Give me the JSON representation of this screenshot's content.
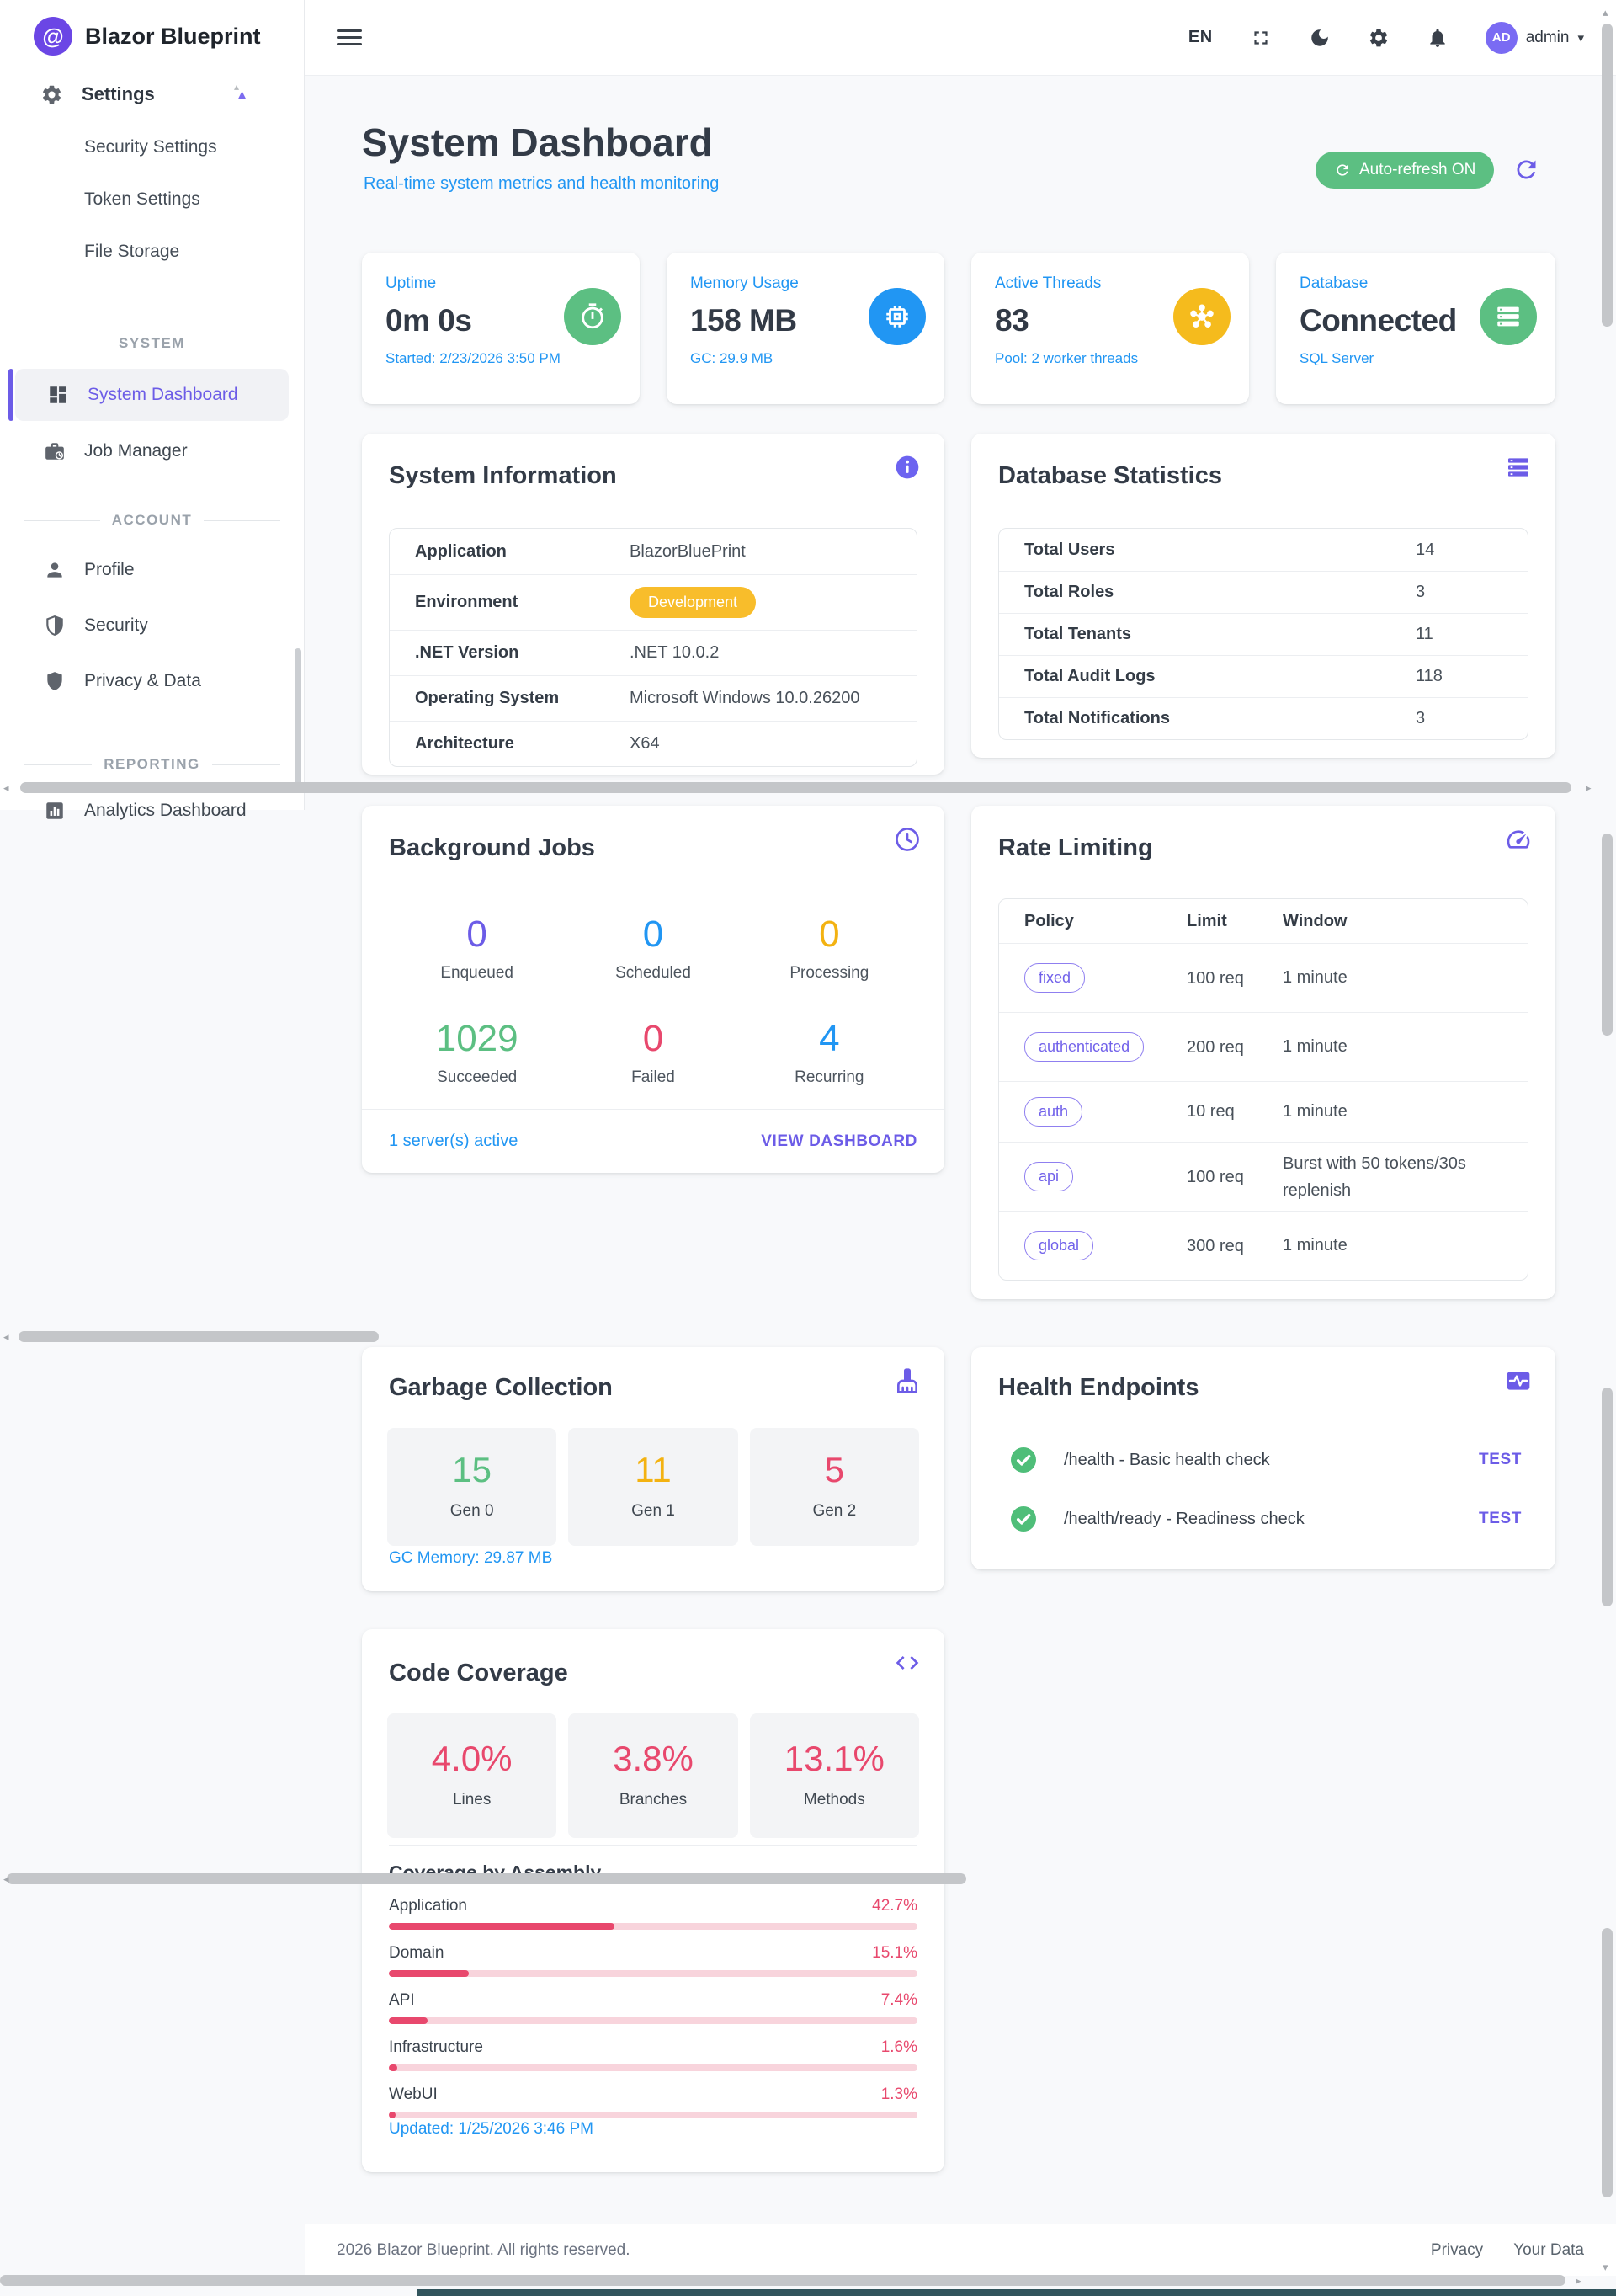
{
  "brand": {
    "name": "Blazor Blueprint"
  },
  "header": {
    "language": "EN",
    "user_initials": "AD",
    "user_name": "admin"
  },
  "sidebar": {
    "settings": {
      "label": "Settings",
      "children": [
        {
          "label": "Security Settings"
        },
        {
          "label": "Token Settings"
        },
        {
          "label": "File Storage"
        }
      ]
    },
    "system_section": {
      "label": "SYSTEM",
      "items": [
        {
          "label": "System Dashboard"
        },
        {
          "label": "Job Manager"
        }
      ]
    },
    "account_section": {
      "label": "ACCOUNT",
      "items": [
        {
          "label": "Profile"
        },
        {
          "label": "Security"
        },
        {
          "label": "Privacy & Data"
        }
      ]
    },
    "reporting_section": {
      "label": "REPORTING",
      "items": [
        {
          "label": "Analytics Dashboard"
        }
      ]
    }
  },
  "page": {
    "title": "System Dashboard",
    "subtitle": "Real-time system metrics and health monitoring",
    "auto_refresh_label": "Auto-refresh ON"
  },
  "metrics": [
    {
      "label": "Uptime",
      "value": "0m 0s",
      "sub": "Started: 2/23/2026 3:50 PM"
    },
    {
      "label": "Memory Usage",
      "value": "158 MB",
      "sub": "GC: 29.9 MB"
    },
    {
      "label": "Active Threads",
      "value": "83",
      "sub": "Pool: 2 worker threads"
    },
    {
      "label": "Database",
      "value": "Connected",
      "sub": "SQL Server"
    }
  ],
  "system_info": {
    "title": "System Information",
    "rows": [
      {
        "label": "Application",
        "value": "BlazorBluePrint"
      },
      {
        "label": "Environment",
        "value": "Development"
      },
      {
        "label": ".NET Version",
        "value": ".NET 10.0.2"
      },
      {
        "label": "Operating System",
        "value": "Microsoft Windows 10.0.26200"
      },
      {
        "label": "Architecture",
        "value": "X64"
      }
    ]
  },
  "db_stats": {
    "title": "Database Statistics",
    "rows": [
      {
        "label": "Total Users",
        "value": "14"
      },
      {
        "label": "Total Roles",
        "value": "3"
      },
      {
        "label": "Total Tenants",
        "value": "11"
      },
      {
        "label": "Total Audit Logs",
        "value": "118"
      },
      {
        "label": "Total Notifications",
        "value": "3"
      }
    ]
  },
  "jobs": {
    "title": "Background Jobs",
    "stats": [
      {
        "value": "0",
        "label": "Enqueued"
      },
      {
        "value": "0",
        "label": "Scheduled"
      },
      {
        "value": "0",
        "label": "Processing"
      },
      {
        "value": "1029",
        "label": "Succeeded"
      },
      {
        "value": "0",
        "label": "Failed"
      },
      {
        "value": "4",
        "label": "Recurring"
      }
    ],
    "servers": "1 server(s) active",
    "view_dashboard": "VIEW DASHBOARD"
  },
  "rate_limiting": {
    "title": "Rate Limiting",
    "headers": {
      "policy": "Policy",
      "limit": "Limit",
      "window": "Window"
    },
    "rows": [
      {
        "policy": "fixed",
        "limit": "100 req",
        "window": "1 minute"
      },
      {
        "policy": "authenticated",
        "limit": "200 req",
        "window": "1 minute"
      },
      {
        "policy": "auth",
        "limit": "10 req",
        "window": "1 minute"
      },
      {
        "policy": "api",
        "limit": "100 req",
        "window": "Burst with 50 tokens/30s replenish"
      },
      {
        "policy": "global",
        "limit": "300 req",
        "window": "1 minute"
      }
    ]
  },
  "gc": {
    "title": "Garbage Collection",
    "stats": [
      {
        "value": "15",
        "label": "Gen 0"
      },
      {
        "value": "11",
        "label": "Gen 1"
      },
      {
        "value": "5",
        "label": "Gen 2"
      }
    ],
    "memory": "GC Memory: 29.87 MB"
  },
  "health": {
    "title": "Health Endpoints",
    "test_label": "TEST",
    "rows": [
      {
        "text": "/health - Basic health check"
      },
      {
        "text": "/health/ready - Readiness check"
      }
    ]
  },
  "coverage": {
    "title": "Code Coverage",
    "stats": [
      {
        "value": "4.0%",
        "label": "Lines"
      },
      {
        "value": "3.8%",
        "label": "Branches"
      },
      {
        "value": "13.1%",
        "label": "Methods"
      }
    ],
    "by_assembly_title": "Coverage by Assembly",
    "assemblies": [
      {
        "name": "Application",
        "pct": "42.7%",
        "value": 42.7
      },
      {
        "name": "Domain",
        "pct": "15.1%",
        "value": 15.1
      },
      {
        "name": "API",
        "pct": "7.4%",
        "value": 7.4
      },
      {
        "name": "Infrastructure",
        "pct": "1.6%",
        "value": 1.6
      },
      {
        "name": "WebUI",
        "pct": "1.3%",
        "value": 1.3
      }
    ],
    "updated": "Updated: 1/25/2026 3:46 PM"
  },
  "footer": {
    "copyright": "2026 Blazor Blueprint. All rights reserved.",
    "privacy": "Privacy",
    "your_data": "Your Data"
  },
  "colors": {
    "primary": "#6c5ce7",
    "blue": "#2196f3",
    "green": "#5cbf82",
    "amber": "#f5bb1d",
    "pink": "#e8486d"
  }
}
